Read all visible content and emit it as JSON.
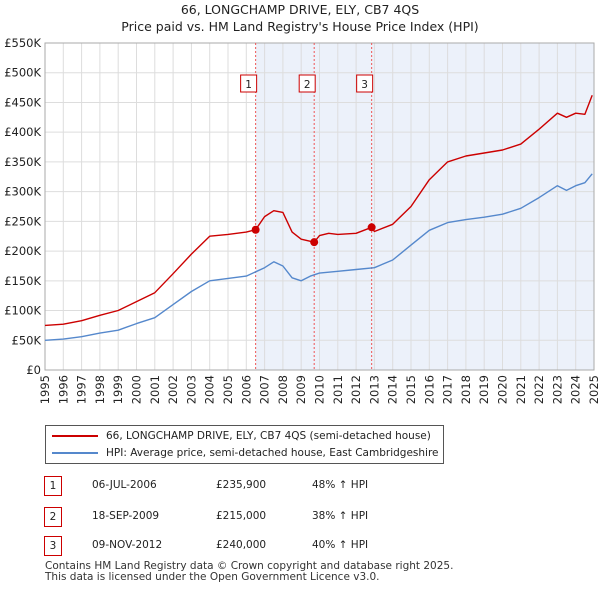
{
  "title_line1": "66, LONGCHAMP DRIVE, ELY, CB7 4QS",
  "title_line2": "Price paid vs. HM Land Registry's House Price Index (HPI)",
  "legend": {
    "series1": "66, LONGCHAMP DRIVE, ELY, CB7 4QS (semi-detached house)",
    "series2": "HPI: Average price, semi-detached house, East Cambridgeshire"
  },
  "transactions": [
    {
      "num": "1",
      "date": "06-JUL-2006",
      "price": "£235,900",
      "hpi": "48% ↑ HPI"
    },
    {
      "num": "2",
      "date": "18-SEP-2009",
      "price": "£215,000",
      "hpi": "38% ↑ HPI"
    },
    {
      "num": "3",
      "date": "09-NOV-2012",
      "price": "£240,000",
      "hpi": "40% ↑ HPI"
    }
  ],
  "footer_line1": "Contains HM Land Registry data © Crown copyright and database right 2025.",
  "footer_line2": "This data is licensed under the Open Government Licence v3.0.",
  "colors": {
    "property": "#cc0000",
    "hpi": "#5588cc",
    "grid": "#dddddd",
    "shade": "#dde6f5",
    "marker_line": "#ee5555"
  },
  "chart_data": {
    "type": "line",
    "title": "66, LONGCHAMP DRIVE, ELY, CB7 4QS — Price paid vs. HM Land Registry's House Price Index (HPI)",
    "xlabel": "",
    "ylabel": "",
    "xlim": [
      1995,
      2025
    ],
    "ylim": [
      0,
      550000
    ],
    "yticks": [
      0,
      50000,
      100000,
      150000,
      200000,
      250000,
      300000,
      350000,
      400000,
      450000,
      500000,
      550000
    ],
    "ytick_labels": [
      "£0",
      "£50K",
      "£100K",
      "£150K",
      "£200K",
      "£250K",
      "£300K",
      "£350K",
      "£400K",
      "£450K",
      "£500K",
      "£550K"
    ],
    "xticks": [
      "1995",
      "1996",
      "1997",
      "1998",
      "1999",
      "2000",
      "2001",
      "2002",
      "2003",
      "2004",
      "2005",
      "2006",
      "2007",
      "2008",
      "2009",
      "2010",
      "2011",
      "2012",
      "2013",
      "2014",
      "2015",
      "2016",
      "2017",
      "2018",
      "2019",
      "2020",
      "2021",
      "2022",
      "2023",
      "2024",
      "2025"
    ],
    "series": [
      {
        "name": "66, LONGCHAMP DRIVE, ELY, CB7 4QS (semi-detached house)",
        "x": [
          1995,
          1996,
          1997,
          1998,
          1999,
          2000,
          2001,
          2002,
          2003,
          2004,
          2005,
          2006,
          2006.51,
          2007,
          2007.5,
          2008,
          2008.5,
          2009,
          2009.71,
          2010,
          2010.5,
          2011,
          2012,
          2012.85,
          2013,
          2014,
          2015,
          2016,
          2017,
          2018,
          2019,
          2020,
          2021,
          2022,
          2023,
          2023.5,
          2024,
          2024.5,
          2024.9
        ],
        "values": [
          75000,
          77000,
          83000,
          92000,
          100000,
          115000,
          130000,
          162000,
          195000,
          225000,
          228000,
          232000,
          235900,
          258000,
          268000,
          265000,
          232000,
          220000,
          215000,
          226000,
          230000,
          228000,
          230000,
          240000,
          233000,
          245000,
          275000,
          320000,
          350000,
          360000,
          365000,
          370000,
          380000,
          405000,
          432000,
          425000,
          432000,
          430000,
          462000
        ]
      },
      {
        "name": "HPI: Average price, semi-detached house, East Cambridgeshire",
        "x": [
          1995,
          1996,
          1997,
          1998,
          1999,
          2000,
          2001,
          2002,
          2003,
          2004,
          2005,
          2006,
          2007,
          2007.5,
          2008,
          2008.5,
          2009,
          2009.5,
          2010,
          2011,
          2012,
          2013,
          2014,
          2015,
          2016,
          2017,
          2018,
          2019,
          2020,
          2021,
          2022,
          2023,
          2023.5,
          2024,
          2024.5,
          2024.9
        ],
        "values": [
          50000,
          52000,
          56000,
          62000,
          67000,
          78000,
          88000,
          110000,
          132000,
          150000,
          154000,
          158000,
          172000,
          182000,
          175000,
          155000,
          150000,
          158000,
          163000,
          166000,
          169000,
          172000,
          185000,
          210000,
          235000,
          248000,
          253000,
          257000,
          262000,
          272000,
          290000,
          310000,
          302000,
          310000,
          315000,
          330000
        ]
      }
    ],
    "annotations": [
      {
        "label": "1",
        "x": 2006.51,
        "value": 235900
      },
      {
        "label": "2",
        "x": 2009.71,
        "value": 215000
      },
      {
        "label": "3",
        "x": 2012.85,
        "value": 240000
      }
    ]
  }
}
